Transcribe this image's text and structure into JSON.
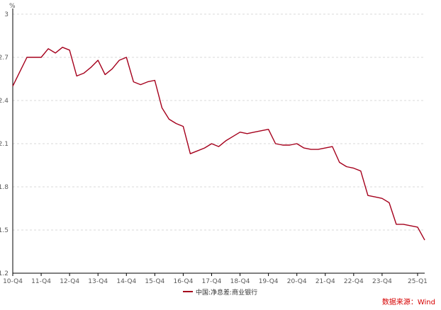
{
  "chart_data": {
    "type": "line",
    "unit": "%",
    "source": "数据来源：Wind",
    "ylim": [
      1.2,
      3.0
    ],
    "y_ticks": [
      1.2,
      1.5,
      1.8,
      2.1,
      2.4,
      2.7,
      3.0
    ],
    "y_tick_labels": [
      "1.2",
      "1.5",
      "1.8",
      "2.1",
      "2.4",
      "2.7",
      "3"
    ],
    "x_tick_labels": [
      "10-Q4",
      "11-Q4",
      "12-Q4",
      "13-Q4",
      "14-Q4",
      "15-Q4",
      "16-Q4",
      "17-Q4",
      "18-Q4",
      "19-Q4",
      "20-Q4",
      "21-Q4",
      "22-Q4",
      "23-Q4",
      "25-Q1"
    ],
    "x_tick_index": [
      0,
      4,
      8,
      12,
      16,
      20,
      24,
      28,
      32,
      36,
      40,
      44,
      48,
      52,
      57
    ],
    "grid": true,
    "legend_placement": "bottom",
    "colors": {
      "series": "#a5001c",
      "grid": "#d9d9d9",
      "axis": "#000000",
      "source": "#d60000"
    },
    "series": [
      {
        "name": "中国:净息差:商业银行",
        "values": [
          2.5,
          2.6,
          2.7,
          2.7,
          2.7,
          2.76,
          2.73,
          2.77,
          2.75,
          2.57,
          2.59,
          2.63,
          2.68,
          2.58,
          2.62,
          2.68,
          2.7,
          2.53,
          2.51,
          2.53,
          2.54,
          2.35,
          2.27,
          2.24,
          2.22,
          2.03,
          2.05,
          2.07,
          2.1,
          2.08,
          2.12,
          2.15,
          2.18,
          2.17,
          2.18,
          2.19,
          2.2,
          2.1,
          2.09,
          2.09,
          2.1,
          2.07,
          2.06,
          2.06,
          2.07,
          2.08,
          1.97,
          1.94,
          1.93,
          1.91,
          1.74,
          1.73,
          1.72,
          1.69,
          1.54,
          1.54,
          1.53,
          1.52,
          1.43
        ]
      }
    ]
  }
}
